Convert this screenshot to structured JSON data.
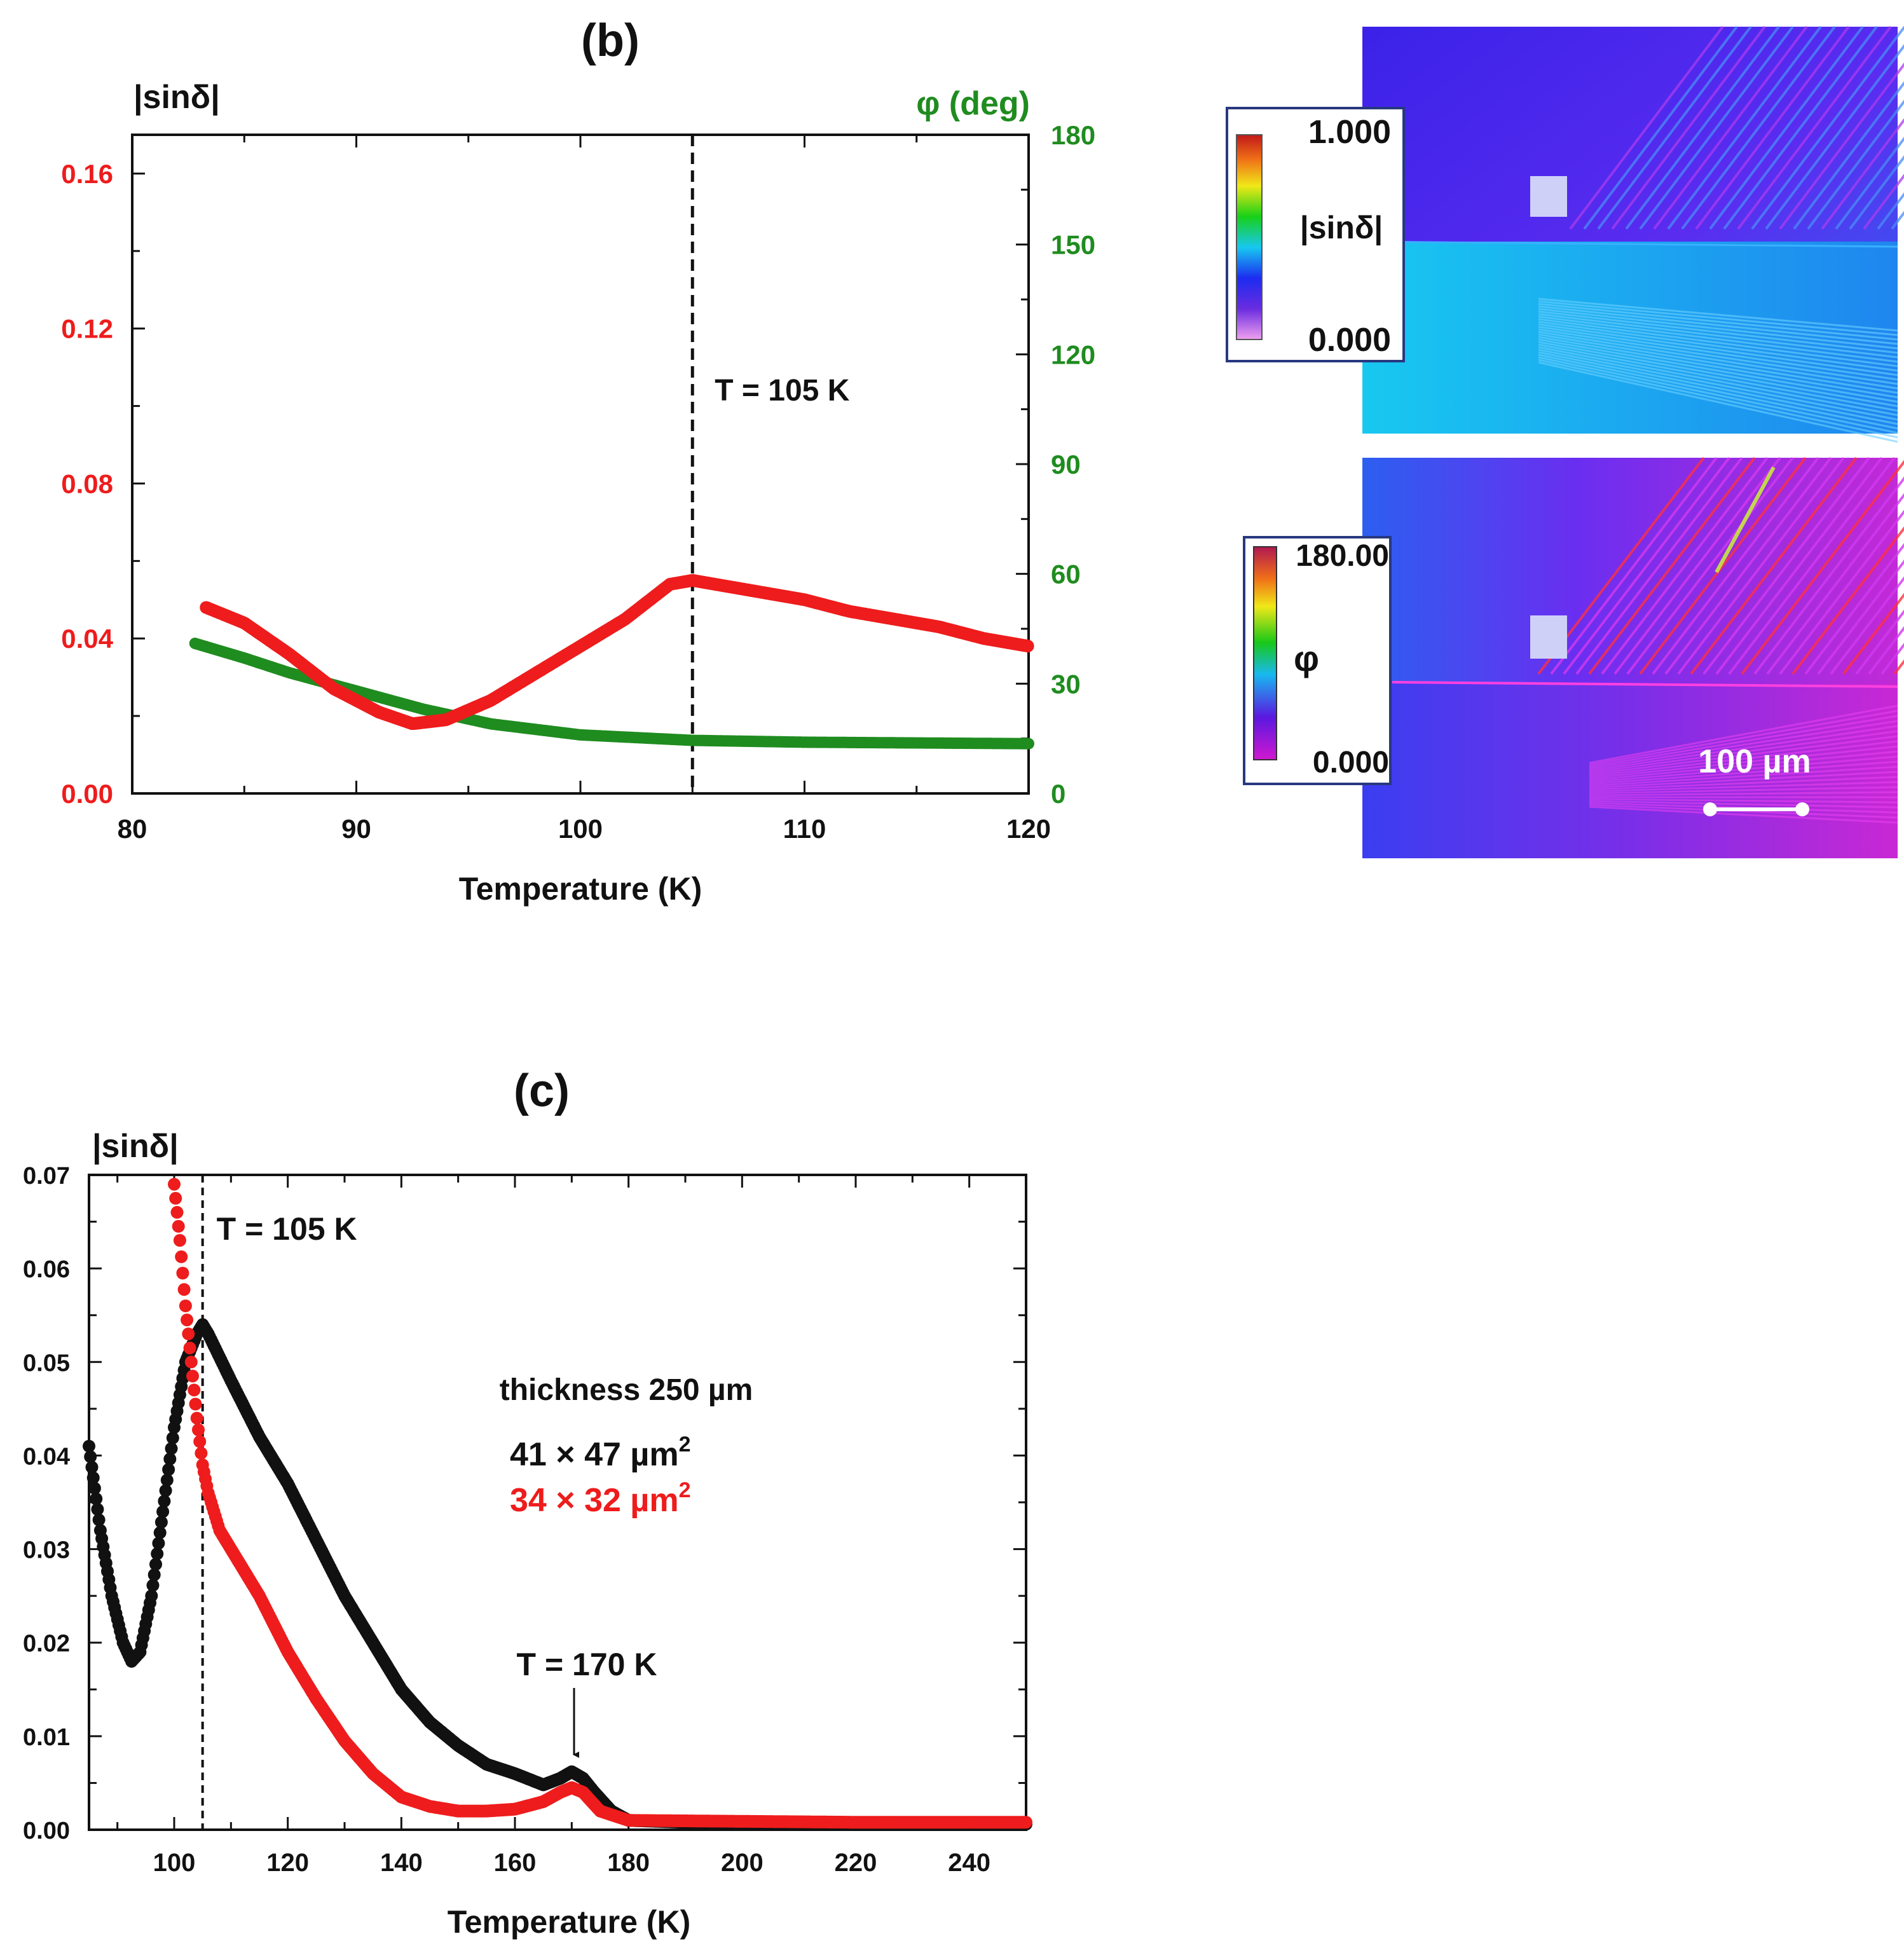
{
  "chart_data": [
    {
      "panel": "(b)",
      "type": "scatter",
      "title": "",
      "xlabel": "Temperature (K)",
      "ylabel_left": "|sinδ|",
      "ylabel_right": "φ (deg)",
      "xlim": [
        80,
        120
      ],
      "ylim_left": [
        0,
        0.17
      ],
      "ylim_right": [
        0,
        180
      ],
      "xticks": [
        "80",
        "90",
        "100",
        "110",
        "120"
      ],
      "yticks_left": [
        "0.00",
        "0.04",
        "0.08",
        "0.12",
        "0.16"
      ],
      "yticks_right": [
        "0",
        "30",
        "60",
        "90",
        "120",
        "150",
        "180"
      ],
      "vline": {
        "x": 105,
        "label": "T = 105 K"
      },
      "series": [
        {
          "name": "|sinδ|",
          "axis": "left",
          "color": "#ee1c1c",
          "x": [
            83.3,
            85,
            87,
            89,
            91,
            92.5,
            94,
            96,
            98,
            100,
            102,
            104,
            105,
            106,
            108,
            110,
            112,
            114,
            116,
            118,
            120
          ],
          "y": [
            0.048,
            0.044,
            0.036,
            0.027,
            0.021,
            0.018,
            0.019,
            0.024,
            0.031,
            0.038,
            0.045,
            0.054,
            0.055,
            0.054,
            0.052,
            0.05,
            0.047,
            0.045,
            0.043,
            0.04,
            0.038
          ]
        },
        {
          "name": "φ",
          "axis": "right",
          "color": "#1f8c1f",
          "x": [
            82.8,
            85,
            87,
            90,
            93,
            96,
            100,
            105,
            110,
            115,
            120
          ],
          "y": [
            41,
            37,
            33,
            28,
            23,
            19,
            16,
            14.5,
            14,
            13.8,
            13.6
          ]
        }
      ]
    },
    {
      "panel": "(c)",
      "type": "scatter",
      "title": "",
      "xlabel": "Temperature (K)",
      "ylabel": "|sinδ|",
      "xlim": [
        85,
        250
      ],
      "ylim": [
        0,
        0.07
      ],
      "xticks": [
        "100",
        "120",
        "140",
        "160",
        "180",
        "200",
        "220",
        "240"
      ],
      "yticks": [
        "0.00",
        "0.01",
        "0.02",
        "0.03",
        "0.04",
        "0.05",
        "0.06",
        "0.07"
      ],
      "vline": {
        "x": 105,
        "label": "T = 105 K"
      },
      "annotations": {
        "thickness": "thickness 250 µm",
        "arrow_label": "T = 170 K",
        "legend": [
          {
            "prefix": "41 × 47 µm",
            "sup": "2",
            "color": "#111111"
          },
          {
            "prefix": "34 × 32 µm",
            "sup": "2",
            "color": "#ee1c1c"
          }
        ]
      },
      "series": [
        {
          "name": "41 × 47 µm²",
          "color": "#111111",
          "x": [
            85,
            87,
            89,
            91,
            92.5,
            94,
            96,
            98,
            100,
            102,
            104,
            105,
            106,
            110,
            115,
            120,
            125,
            130,
            135,
            140,
            145,
            150,
            155,
            160,
            165,
            168,
            170,
            172,
            174,
            177,
            180,
            190,
            200,
            220,
            240,
            250
          ],
          "y": [
            0.041,
            0.032,
            0.025,
            0.02,
            0.018,
            0.019,
            0.025,
            0.034,
            0.043,
            0.05,
            0.053,
            0.054,
            0.053,
            0.048,
            0.042,
            0.037,
            0.031,
            0.025,
            0.02,
            0.015,
            0.0115,
            0.009,
            0.007,
            0.006,
            0.0048,
            0.0055,
            0.0062,
            0.0055,
            0.004,
            0.002,
            0.001,
            0.0008,
            0.0007,
            0.0006,
            0.0006,
            0.0006
          ]
        },
        {
          "name": "34 × 32 µm²",
          "color": "#ee1c1c",
          "x": [
            100,
            101,
            102,
            103,
            104,
            105,
            106,
            108,
            110,
            115,
            120,
            125,
            130,
            135,
            140,
            145,
            150,
            155,
            160,
            165,
            168,
            170,
            172,
            175,
            180,
            200,
            220,
            240,
            250
          ],
          "y": [
            0.069,
            0.063,
            0.056,
            0.05,
            0.044,
            0.039,
            0.036,
            0.032,
            0.03,
            0.025,
            0.019,
            0.014,
            0.0095,
            0.006,
            0.0035,
            0.0025,
            0.002,
            0.002,
            0.0022,
            0.003,
            0.004,
            0.0045,
            0.004,
            0.002,
            0.001,
            0.0009,
            0.0008,
            0.0008,
            0.0008
          ]
        }
      ]
    }
  ],
  "images": [
    {
      "name": "|sinδ| map",
      "colorbar_max": "1.000",
      "colorbar_min": "0.000",
      "colorbar_label": "|sinδ|"
    },
    {
      "name": "φ map",
      "colorbar_max": "180.00",
      "colorbar_min": "0.000",
      "colorbar_label": "φ",
      "scale_bar": "100 µm"
    }
  ],
  "colors": {
    "red": "#ee1c1c",
    "green": "#1f8c1f",
    "black": "#111111"
  }
}
